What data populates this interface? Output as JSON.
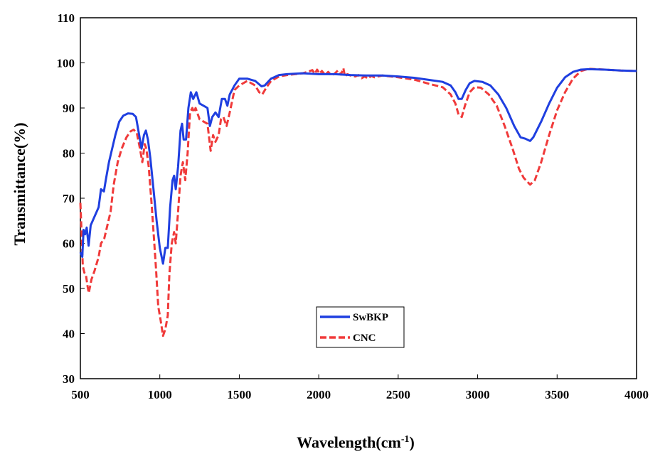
{
  "chart_data": {
    "type": "line",
    "xlabel": "Wavelength(cm",
    "xlabel_sup": "-1",
    "xlabel_end": ")",
    "ylabel": "Transmittance(%)",
    "xlim": [
      500,
      4000
    ],
    "ylim": [
      30,
      110
    ],
    "xticks": [
      500,
      1000,
      1500,
      2000,
      2500,
      3000,
      3500,
      4000
    ],
    "yticks": [
      30,
      40,
      50,
      60,
      70,
      80,
      90,
      100,
      110
    ],
    "grid": false,
    "legend_position": "bottom-center",
    "series": [
      {
        "name": "SwBKP",
        "color": "#1f3fe0",
        "style": "solid",
        "points": [
          [
            500,
            58
          ],
          [
            512,
            57
          ],
          [
            520,
            63
          ],
          [
            530,
            62
          ],
          [
            540,
            63.5
          ],
          [
            552,
            59.5
          ],
          [
            565,
            64
          ],
          [
            590,
            66
          ],
          [
            615,
            68
          ],
          [
            630,
            72
          ],
          [
            648,
            71.5
          ],
          [
            660,
            74
          ],
          [
            680,
            78
          ],
          [
            700,
            81
          ],
          [
            720,
            84
          ],
          [
            745,
            87
          ],
          [
            770,
            88.3
          ],
          [
            800,
            88.8
          ],
          [
            830,
            88.7
          ],
          [
            850,
            88
          ],
          [
            870,
            84
          ],
          [
            885,
            81
          ],
          [
            900,
            84
          ],
          [
            912,
            85
          ],
          [
            925,
            83
          ],
          [
            940,
            79
          ],
          [
            960,
            72
          ],
          [
            980,
            65
          ],
          [
            1000,
            59
          ],
          [
            1020,
            55.5
          ],
          [
            1035,
            59
          ],
          [
            1050,
            59
          ],
          [
            1065,
            68
          ],
          [
            1080,
            74
          ],
          [
            1090,
            75
          ],
          [
            1100,
            72
          ],
          [
            1115,
            77
          ],
          [
            1130,
            85
          ],
          [
            1140,
            86.5
          ],
          [
            1150,
            83
          ],
          [
            1165,
            83
          ],
          [
            1180,
            90
          ],
          [
            1195,
            93.5
          ],
          [
            1210,
            92
          ],
          [
            1230,
            93.5
          ],
          [
            1250,
            91
          ],
          [
            1275,
            90.5
          ],
          [
            1300,
            90
          ],
          [
            1315,
            86
          ],
          [
            1330,
            88
          ],
          [
            1350,
            89
          ],
          [
            1370,
            88
          ],
          [
            1390,
            92
          ],
          [
            1410,
            92
          ],
          [
            1425,
            90.5
          ],
          [
            1440,
            93
          ],
          [
            1470,
            95
          ],
          [
            1500,
            96.5
          ],
          [
            1550,
            96.5
          ],
          [
            1600,
            96
          ],
          [
            1640,
            94.8
          ],
          [
            1660,
            95
          ],
          [
            1700,
            96.5
          ],
          [
            1750,
            97.3
          ],
          [
            1800,
            97.5
          ],
          [
            1900,
            97.7
          ],
          [
            2000,
            97.5
          ],
          [
            2050,
            97.5
          ],
          [
            2100,
            97.5
          ],
          [
            2150,
            97.4
          ],
          [
            2200,
            97.3
          ],
          [
            2300,
            97.2
          ],
          [
            2400,
            97.2
          ],
          [
            2500,
            97
          ],
          [
            2600,
            96.7
          ],
          [
            2700,
            96.2
          ],
          [
            2780,
            95.8
          ],
          [
            2830,
            95
          ],
          [
            2860,
            93.5
          ],
          [
            2880,
            92
          ],
          [
            2900,
            92
          ],
          [
            2925,
            94
          ],
          [
            2950,
            95.5
          ],
          [
            2980,
            96
          ],
          [
            3030,
            95.8
          ],
          [
            3080,
            95
          ],
          [
            3130,
            93
          ],
          [
            3180,
            90
          ],
          [
            3230,
            86
          ],
          [
            3270,
            83.5
          ],
          [
            3300,
            83.2
          ],
          [
            3330,
            82.7
          ],
          [
            3350,
            83.5
          ],
          [
            3400,
            87
          ],
          [
            3450,
            91
          ],
          [
            3500,
            94.5
          ],
          [
            3550,
            96.8
          ],
          [
            3600,
            98
          ],
          [
            3650,
            98.5
          ],
          [
            3700,
            98.6
          ],
          [
            3800,
            98.5
          ],
          [
            3900,
            98.3
          ],
          [
            4000,
            98.2
          ]
        ]
      },
      {
        "name": "CNC",
        "color": "#f03a3a",
        "style": "dashed",
        "points": [
          [
            500,
            69
          ],
          [
            508,
            62
          ],
          [
            515,
            55
          ],
          [
            525,
            53.5
          ],
          [
            535,
            53
          ],
          [
            545,
            50.5
          ],
          [
            553,
            49
          ],
          [
            570,
            52
          ],
          [
            590,
            54
          ],
          [
            615,
            57
          ],
          [
            630,
            60
          ],
          [
            650,
            61
          ],
          [
            670,
            64
          ],
          [
            690,
            67
          ],
          [
            710,
            73
          ],
          [
            735,
            78
          ],
          [
            760,
            81
          ],
          [
            790,
            83.5
          ],
          [
            815,
            84.8
          ],
          [
            835,
            85.2
          ],
          [
            855,
            84.5
          ],
          [
            875,
            81
          ],
          [
            890,
            78
          ],
          [
            905,
            82
          ],
          [
            915,
            81
          ],
          [
            930,
            77
          ],
          [
            950,
            68
          ],
          [
            975,
            55
          ],
          [
            990,
            46
          ],
          [
            1005,
            43
          ],
          [
            1020,
            39.5
          ],
          [
            1035,
            41
          ],
          [
            1050,
            44
          ],
          [
            1060,
            53
          ],
          [
            1075,
            60
          ],
          [
            1090,
            62.5
          ],
          [
            1100,
            60
          ],
          [
            1115,
            67
          ],
          [
            1130,
            75
          ],
          [
            1145,
            78
          ],
          [
            1160,
            74
          ],
          [
            1175,
            80
          ],
          [
            1190,
            89
          ],
          [
            1205,
            90
          ],
          [
            1215,
            89
          ],
          [
            1225,
            90
          ],
          [
            1250,
            87.5
          ],
          [
            1275,
            87
          ],
          [
            1300,
            86.5
          ],
          [
            1320,
            80.5
          ],
          [
            1335,
            84
          ],
          [
            1350,
            82.5
          ],
          [
            1370,
            84
          ],
          [
            1385,
            87.5
          ],
          [
            1400,
            88
          ],
          [
            1420,
            86
          ],
          [
            1440,
            89
          ],
          [
            1470,
            94
          ],
          [
            1500,
            95
          ],
          [
            1550,
            96
          ],
          [
            1600,
            95
          ],
          [
            1625,
            93.5
          ],
          [
            1645,
            93
          ],
          [
            1670,
            94.5
          ],
          [
            1700,
            96
          ],
          [
            1750,
            97
          ],
          [
            1800,
            97.3
          ],
          [
            1850,
            97.5
          ],
          [
            1900,
            97.7
          ],
          [
            1930,
            98
          ],
          [
            1960,
            98.4
          ],
          [
            1975,
            97.6
          ],
          [
            1990,
            98.5
          ],
          [
            2005,
            97.6
          ],
          [
            2020,
            98.2
          ],
          [
            2040,
            97.3
          ],
          [
            2060,
            98
          ],
          [
            2080,
            97.2
          ],
          [
            2100,
            97.6
          ],
          [
            2120,
            98.3
          ],
          [
            2140,
            97.4
          ],
          [
            2155,
            98.8
          ],
          [
            2165,
            97
          ],
          [
            2180,
            97.5
          ],
          [
            2200,
            97.2
          ],
          [
            2230,
            97
          ],
          [
            2250,
            97.3
          ],
          [
            2270,
            96.6
          ],
          [
            2290,
            97
          ],
          [
            2310,
            96.5
          ],
          [
            2330,
            97.1
          ],
          [
            2350,
            96.8
          ],
          [
            2400,
            97.2
          ],
          [
            2500,
            96.8
          ],
          [
            2600,
            96.3
          ],
          [
            2700,
            95.3
          ],
          [
            2780,
            94.6
          ],
          [
            2830,
            93
          ],
          [
            2860,
            91
          ],
          [
            2880,
            88.5
          ],
          [
            2900,
            88
          ],
          [
            2920,
            90.5
          ],
          [
            2950,
            93.5
          ],
          [
            2980,
            94.6
          ],
          [
            3020,
            94.5
          ],
          [
            3070,
            93
          ],
          [
            3120,
            90.5
          ],
          [
            3170,
            86
          ],
          [
            3220,
            81
          ],
          [
            3260,
            76.5
          ],
          [
            3290,
            74.5
          ],
          [
            3330,
            73
          ],
          [
            3360,
            74
          ],
          [
            3400,
            78
          ],
          [
            3450,
            84
          ],
          [
            3500,
            89.5
          ],
          [
            3550,
            93.5
          ],
          [
            3600,
            96.5
          ],
          [
            3650,
            98.2
          ],
          [
            3700,
            98.7
          ],
          [
            3800,
            98.5
          ],
          [
            3900,
            98.3
          ],
          [
            4000,
            98.2
          ]
        ]
      }
    ]
  }
}
